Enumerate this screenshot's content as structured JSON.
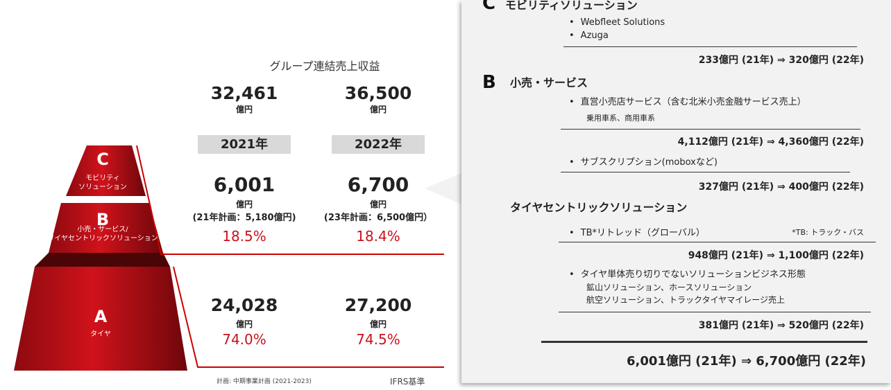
{
  "left": {
    "pyramid": [
      {
        "letter": "C",
        "label": [
          "モビリティ",
          "ソリューション"
        ]
      },
      {
        "letter": "B",
        "label": [
          "小売・サービス/",
          "タイヤセントリックソリューション"
        ]
      },
      {
        "letter": "A",
        "label": [
          "タイヤ"
        ]
      }
    ],
    "title": "グループ連結売上収益",
    "totals": [
      {
        "value": "32,461",
        "unit": "億円"
      },
      {
        "value": "36,500",
        "unit": "億円"
      }
    ],
    "years": [
      "2021年",
      "2022年"
    ],
    "cb": [
      {
        "value": "6,001",
        "unit": "億円",
        "plan": "(21年計画：5,180億円)",
        "share": "18.5%"
      },
      {
        "value": "6,700",
        "unit": "億円",
        "plan": "(23年計画：6,500億円）",
        "share": "18.4%"
      }
    ],
    "a": [
      {
        "value": "24,028",
        "unit": "億円",
        "share": "74.0%"
      },
      {
        "value": "27,200",
        "unit": "億円",
        "share": "74.5%"
      }
    ],
    "note": "計画: 中期事業計画 (2021-2023)",
    "basis": "IFRS基準"
  },
  "right": {
    "c_letter": "C",
    "c_title": "モビリティソリューション",
    "c_items": [
      "Webfleet Solutions",
      "Azuga"
    ],
    "c_result": "233億円 (21年) ⇒ 320億円 (22年)",
    "b_letter": "B",
    "b_title": "小売・サービス",
    "b_groups": [
      {
        "item": "直営小売店サービス（含む北米小売金融サービス売上）",
        "sub": [
          "乗用車系、商用車系"
        ],
        "result": "4,112億円 (21年) ⇒ 4,360億円 (22年)"
      },
      {
        "item": "サブスクリプション(moboxなど)",
        "result": "327億円 (21年) ⇒ 400億円 (22年)"
      }
    ],
    "t_title": "タイヤセントリックソリューション",
    "t_groups": [
      {
        "item": "TB*リトレッド（グローバル）",
        "note": "*TB: トラック・バス",
        "result": "948億円 (21年) ⇒ 1,100億円 (22年)"
      },
      {
        "item": "タイヤ単体売り切りでないソリューションビジネス形態",
        "sub": [
          "鉱山ソリューション、ホースソリューション",
          "航空ソリューション、トラックタイヤマイレージ売上"
        ],
        "result": "381億円 (21年) ⇒ 520億円 (22年)"
      }
    ],
    "total": "6,001億円 (21年) ⇒ 6,700億円 (22年)"
  }
}
